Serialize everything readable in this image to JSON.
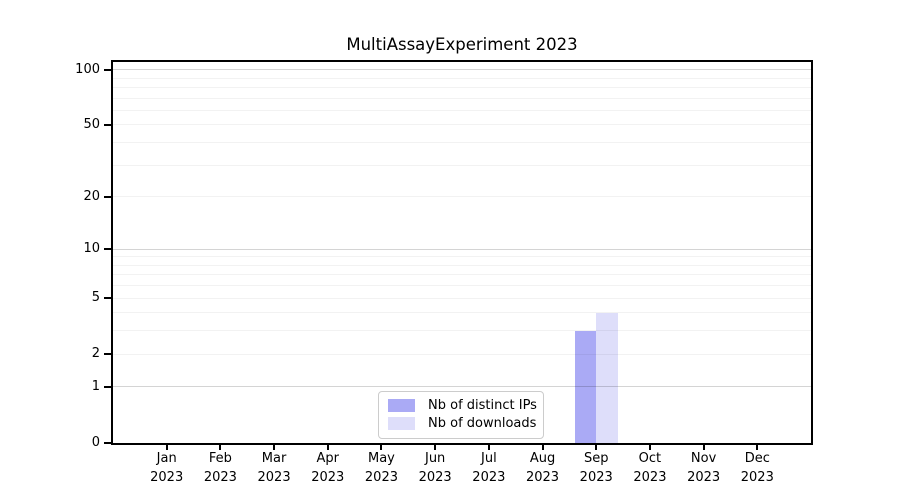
{
  "chart_data": {
    "type": "bar",
    "title": "MultiAssayExperiment 2023",
    "months": [
      "Jan",
      "Feb",
      "Mar",
      "Apr",
      "May",
      "Jun",
      "Jul",
      "Aug",
      "Sep",
      "Oct",
      "Nov",
      "Dec"
    ],
    "year": "2023",
    "series": [
      {
        "name": "Nb of distinct IPs",
        "color": "#aaaaf5",
        "values": [
          0,
          0,
          0,
          0,
          0,
          0,
          0,
          0,
          3,
          0,
          0,
          0
        ]
      },
      {
        "name": "Nb of downloads",
        "color": "#dedefa",
        "values": [
          0,
          0,
          0,
          0,
          0,
          0,
          0,
          0,
          4,
          0,
          0,
          0
        ]
      }
    ],
    "y_scale": "log1p",
    "y_ticks": [
      0,
      1,
      2,
      5,
      10,
      20,
      50,
      100
    ],
    "y_max": 110,
    "grid": {
      "major": [
        1,
        10,
        100
      ],
      "minor": [
        2,
        3,
        4,
        5,
        6,
        7,
        8,
        9,
        20,
        30,
        40,
        50,
        60,
        70,
        80,
        90
      ],
      "major_color": "rgba(0,0,0,0.17)",
      "minor_color": "rgba(0,0,0,0.05)"
    },
    "legend_position": "bottom-center",
    "axis_color": "#000000",
    "background": "#ffffff"
  }
}
